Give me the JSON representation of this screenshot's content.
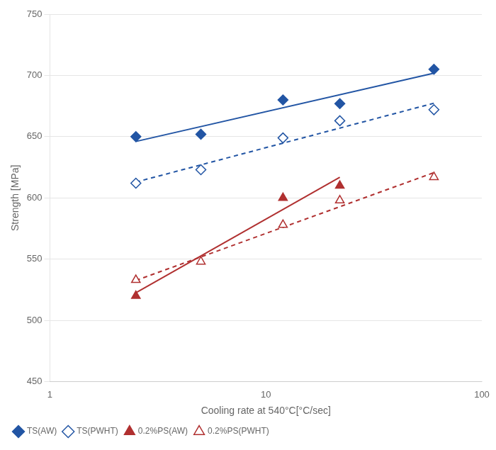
{
  "chart_data": {
    "type": "scatter",
    "xlabel": "Cooling rate at 540°C[°C/sec]",
    "ylabel": "Strength [MPa]",
    "log": "x",
    "xlim": [
      1,
      100
    ],
    "xticks": [
      1,
      10,
      100
    ],
    "ylim": [
      450,
      750
    ],
    "yticks": [
      450,
      500,
      550,
      600,
      650,
      700,
      750
    ],
    "grid": "y",
    "legend": "lower left",
    "series": [
      {
        "type": "line",
        "color": "#2255a4",
        "line_style": "solid",
        "x": [
          2.5,
          60
        ],
        "values": [
          646.08,
          701.84
        ]
      },
      {
        "type": "line",
        "color": "#2255a4",
        "line_style": "dashed",
        "x": [
          2.5,
          60
        ],
        "values": [
          612.94,
          677.34
        ]
      },
      {
        "type": "line",
        "color": "#b03030",
        "line_style": "solid",
        "x": [
          2.5,
          22
        ],
        "values": [
          522.63,
          616.81
        ]
      },
      {
        "type": "line",
        "color": "#b03030",
        "line_style": "dashed",
        "x": [
          2.5,
          60
        ],
        "values": [
          532.62,
          620.64
        ]
      },
      {
        "name": "TS(AW)",
        "type": "scatter",
        "color": "#2255a4",
        "marker": "diamond",
        "x": [
          2.5,
          5,
          12,
          22,
          60
        ],
        "values": [
          650,
          652,
          680,
          677,
          705
        ]
      },
      {
        "name": "TS(PWHT)",
        "type": "scatter",
        "color": "#2255a4",
        "marker": "open_diamond",
        "x": [
          2.5,
          5,
          12,
          22,
          60
        ],
        "values": [
          612,
          623,
          649,
          663,
          672
        ]
      },
      {
        "name": "0.2%PS(AW)",
        "type": "scatter",
        "color": "#b03030",
        "marker": "triangle",
        "x": [
          2.5,
          12,
          22
        ],
        "values": [
          520,
          600,
          610
        ]
      },
      {
        "name": "0.2%PS(PWHT)",
        "type": "scatter",
        "color": "#b03030",
        "marker": "open_triangle",
        "x": [
          2.5,
          5,
          12,
          22,
          60
        ],
        "values": [
          533,
          548,
          578,
          598,
          617
        ]
      }
    ]
  }
}
